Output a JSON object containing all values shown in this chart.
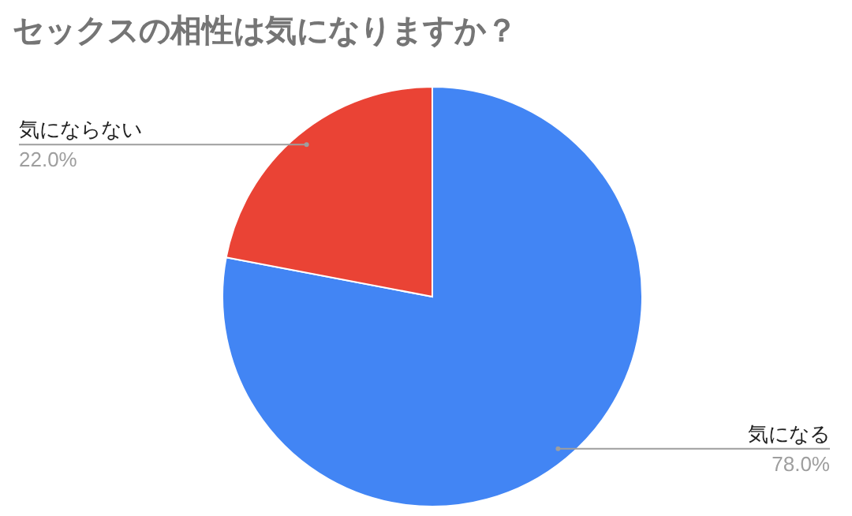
{
  "chart_data": {
    "type": "pie",
    "title": "セックスの相性は気になりますか？",
    "categories": [
      "気になる",
      "気にならない"
    ],
    "values": [
      78.0,
      22.0
    ],
    "colors": [
      "#4285f4",
      "#ea4335"
    ],
    "value_labels": [
      "78.0%",
      "22.0%"
    ],
    "legend": false
  }
}
